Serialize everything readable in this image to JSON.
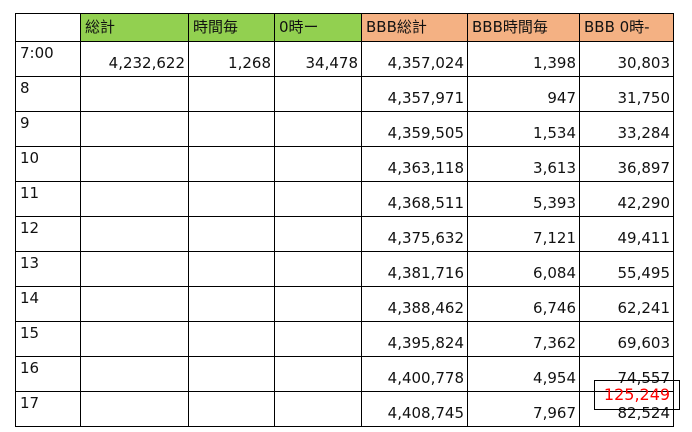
{
  "headers": {
    "corner": "",
    "total": "総計",
    "hourly": "時間毎",
    "from_zero": "0時ー",
    "bbb_total": "BBB総計",
    "bbb_hourly": "BBB時間毎",
    "bbb_from_zero": "BBB 0時-"
  },
  "header_colors": {
    "green": "#92d050",
    "orange": "#f4b183"
  },
  "rows": [
    {
      "time": "7:00",
      "total": "4,232,622",
      "hourly": "1,268",
      "from_zero": "34,478",
      "bbb_total": "4,357,024",
      "bbb_hourly": "1,398",
      "bbb_from_zero": "30,803"
    },
    {
      "time": "8",
      "total": "",
      "hourly": "",
      "from_zero": "",
      "bbb_total": "4,357,971",
      "bbb_hourly": "947",
      "bbb_from_zero": "31,750"
    },
    {
      "time": "9",
      "total": "",
      "hourly": "",
      "from_zero": "",
      "bbb_total": "4,359,505",
      "bbb_hourly": "1,534",
      "bbb_from_zero": "33,284"
    },
    {
      "time": "10",
      "total": "",
      "hourly": "",
      "from_zero": "",
      "bbb_total": "4,363,118",
      "bbb_hourly": "3,613",
      "bbb_from_zero": "36,897"
    },
    {
      "time": "11",
      "total": "",
      "hourly": "",
      "from_zero": "",
      "bbb_total": "4,368,511",
      "bbb_hourly": "5,393",
      "bbb_from_zero": "42,290"
    },
    {
      "time": "12",
      "total": "",
      "hourly": "",
      "from_zero": "",
      "bbb_total": "4,375,632",
      "bbb_hourly": "7,121",
      "bbb_from_zero": "49,411"
    },
    {
      "time": "13",
      "total": "",
      "hourly": "",
      "from_zero": "",
      "bbb_total": "4,381,716",
      "bbb_hourly": "6,084",
      "bbb_from_zero": "55,495"
    },
    {
      "time": "14",
      "total": "",
      "hourly": "",
      "from_zero": "",
      "bbb_total": "4,388,462",
      "bbb_hourly": "6,746",
      "bbb_from_zero": "62,241"
    },
    {
      "time": "15",
      "total": "",
      "hourly": "",
      "from_zero": "",
      "bbb_total": "4,395,824",
      "bbb_hourly": "7,362",
      "bbb_from_zero": "69,603"
    },
    {
      "time": "16",
      "total": "",
      "hourly": "",
      "from_zero": "",
      "bbb_total": "4,400,778",
      "bbb_hourly": "4,954",
      "bbb_from_zero": "74,557"
    },
    {
      "time": "17",
      "total": "",
      "hourly": "",
      "from_zero": "",
      "bbb_total": "4,408,745",
      "bbb_hourly": "7,967",
      "bbb_from_zero": "82,524"
    }
  ],
  "grand_total": {
    "value": "125,249",
    "color": "#ff0000"
  }
}
